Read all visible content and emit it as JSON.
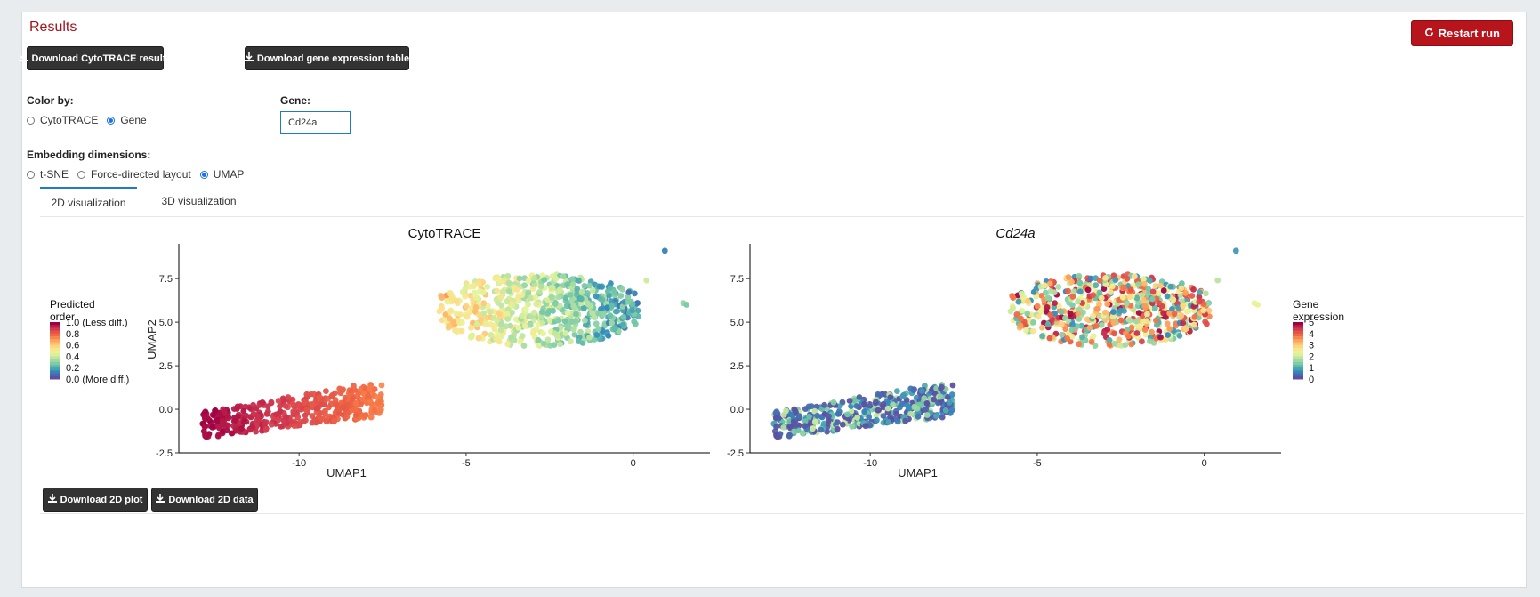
{
  "results": {
    "title": "Results",
    "restart_label": "Restart run",
    "download_cytotrace_label": "Download CytoTRACE results",
    "download_gene_table_label": "Download gene expression table"
  },
  "color_by": {
    "label": "Color by:",
    "options": [
      "CytoTRACE",
      "Gene"
    ],
    "selected": "Gene"
  },
  "gene": {
    "label": "Gene:",
    "value": "Cd24a"
  },
  "embedding": {
    "label": "Embedding dimensions:",
    "options": [
      "t-SNE",
      "Force-directed layout",
      "UMAP"
    ],
    "selected": "UMAP"
  },
  "tabs": [
    "2D visualization",
    "3D visualization"
  ],
  "active_tab": "2D visualization",
  "bottom": {
    "download_plot_label": "Download 2D plot",
    "download_data_label": "Download 2D data"
  },
  "icons": {
    "download": "download-icon",
    "restart": "refresh-icon"
  },
  "colors": {
    "accent_red": "#b8141c",
    "title_red": "#a3141f",
    "tab_blue": "#1e7bc9",
    "button_dark": "#333333"
  },
  "chart_data": [
    {
      "type": "scatter",
      "title": "CytoTRACE",
      "xlabel": "UMAP1",
      "ylabel": "UMAP2",
      "xlim": [
        -13.6,
        2.3
      ],
      "ylim": [
        -2.5,
        9.5
      ],
      "xticks": [
        -10,
        -5,
        0
      ],
      "xtick_labels": [
        "-10",
        "-5",
        "0"
      ],
      "yticks": [
        -2.5,
        0.0,
        2.5,
        5.0,
        7.5
      ],
      "ytick_labels": [
        "-2.5",
        "0.0",
        "2.5",
        "5.0",
        "7.5"
      ],
      "legend": {
        "title": "Predicted order",
        "position": "left",
        "labels": [
          "1.0 (Less diff.)",
          "0.8",
          "0.6",
          "0.4",
          "0.2",
          "0.0 (More diff.)"
        ]
      },
      "color_scale": "Spectral",
      "clusters": [
        {
          "name": "lower-left",
          "x_range": [
            -12.9,
            -7.5
          ],
          "y_range": [
            -1.6,
            1.5
          ],
          "value_range": [
            0.75,
            1.0
          ],
          "approx_count": 420
        },
        {
          "name": "upper-right",
          "x_range": [
            -5.8,
            0.2
          ],
          "y_range": [
            3.2,
            7.8
          ],
          "value_range": [
            0.15,
            0.6
          ],
          "approx_count": 620
        },
        {
          "name": "outliers",
          "points": [
            {
              "x": 0.95,
              "y": 9.1,
              "v": 0.1
            },
            {
              "x": 0.4,
              "y": 7.4,
              "v": 0.4
            },
            {
              "x": 1.5,
              "y": 6.1,
              "v": 0.3
            },
            {
              "x": 1.6,
              "y": 6.0,
              "v": 0.25
            }
          ]
        }
      ]
    },
    {
      "type": "scatter",
      "title": "Cd24a",
      "xlabel": "UMAP1",
      "ylabel": "",
      "xlim": [
        -13.6,
        2.3
      ],
      "ylim": [
        -2.5,
        9.5
      ],
      "xticks": [
        -10,
        -5,
        0
      ],
      "xtick_labels": [
        "-10",
        "-5",
        "0"
      ],
      "yticks": [
        -2.5,
        0.0,
        2.5,
        5.0,
        7.5
      ],
      "ytick_labels": [
        "-2.5",
        "0.0",
        "2.5",
        "5.0",
        "7.5"
      ],
      "legend": {
        "title": "Gene expression",
        "position": "right",
        "labels": [
          "5",
          "4",
          "3",
          "2",
          "1",
          "0"
        ]
      },
      "color_scale": "Spectral",
      "clusters": [
        {
          "name": "lower-left",
          "x_range": [
            -12.9,
            -7.5
          ],
          "y_range": [
            -1.6,
            1.5
          ],
          "value_range": [
            0,
            2.2
          ],
          "approx_count": 420
        },
        {
          "name": "upper-right",
          "x_range": [
            -5.8,
            0.2
          ],
          "y_range": [
            3.2,
            7.8
          ],
          "value_range": [
            0.5,
            5.5
          ],
          "approx_count": 620
        },
        {
          "name": "outliers",
          "points": [
            {
              "x": 0.95,
              "y": 9.1,
              "v": 0.8
            },
            {
              "x": 0.4,
              "y": 7.4,
              "v": 2.0
            },
            {
              "x": 1.5,
              "y": 6.1,
              "v": 2.5
            },
            {
              "x": 1.6,
              "y": 6.0,
              "v": 2.6
            }
          ]
        }
      ]
    }
  ]
}
